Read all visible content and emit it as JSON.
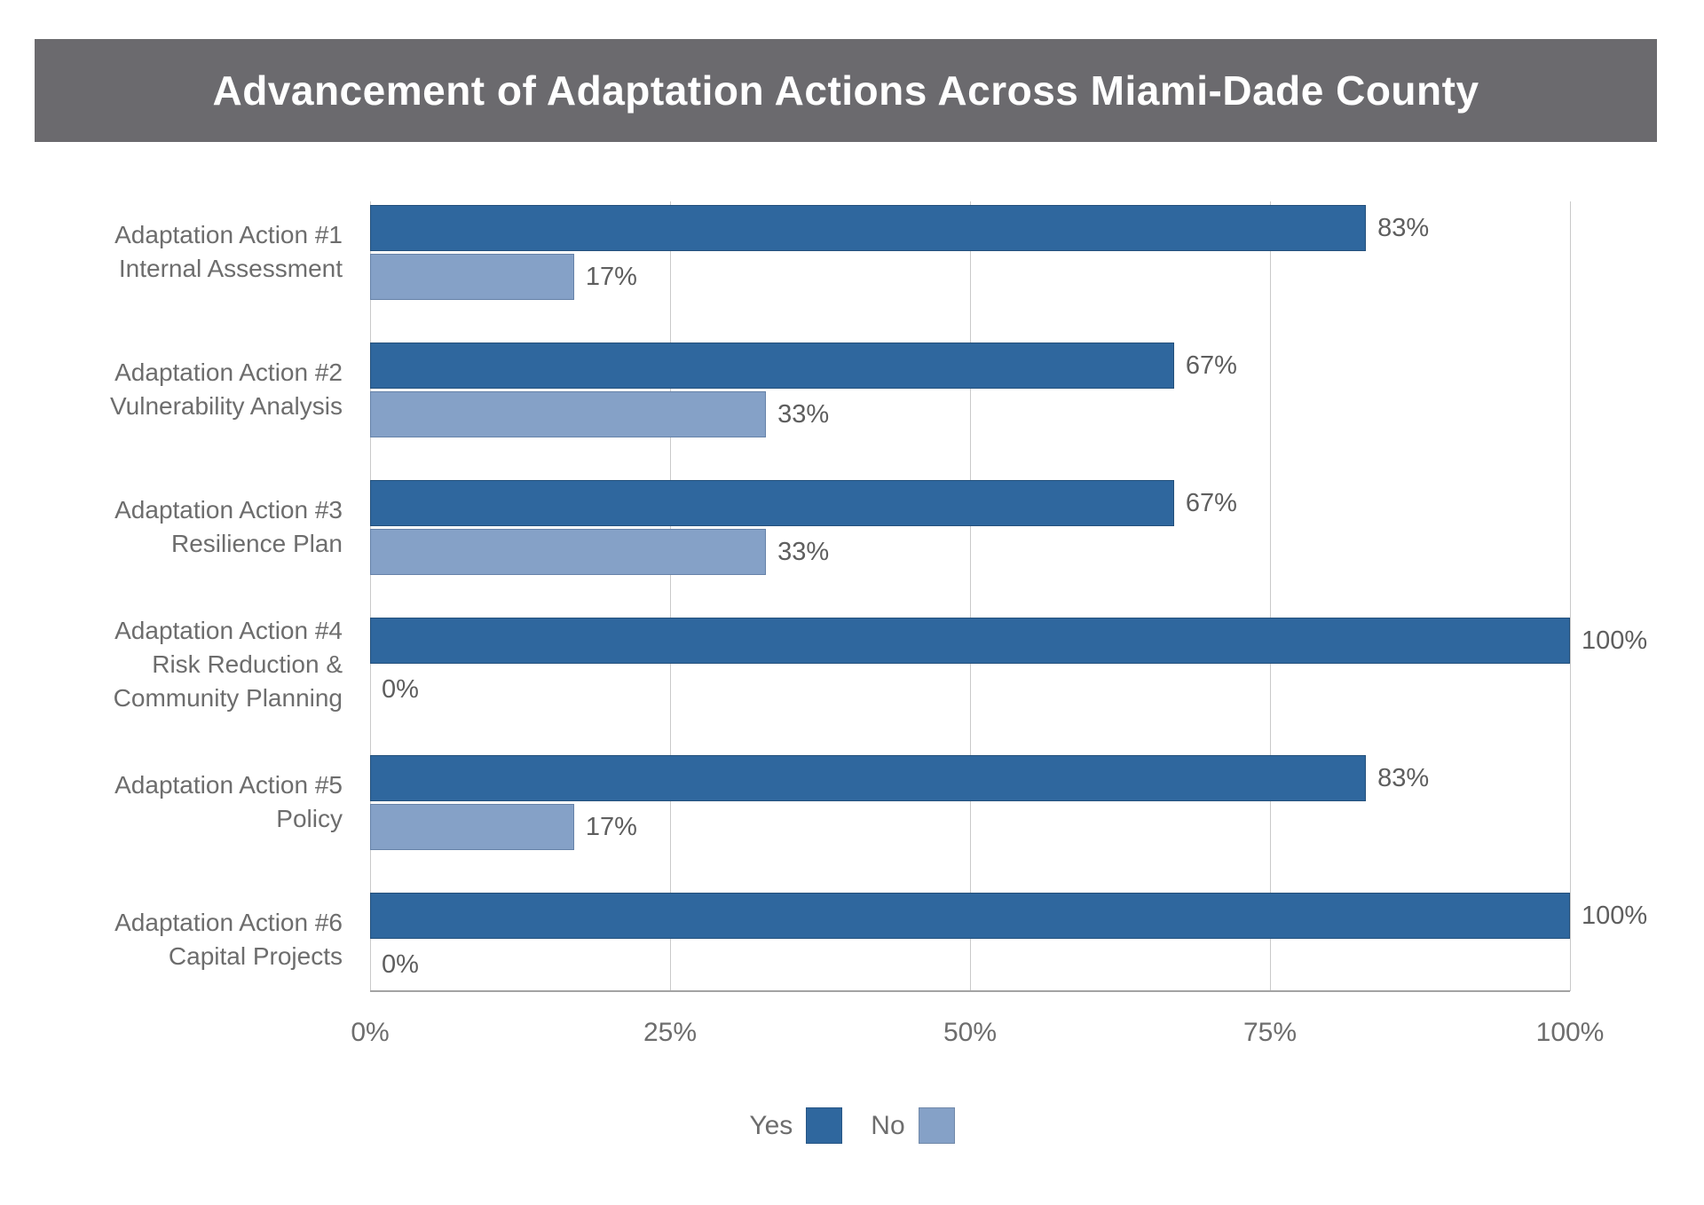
{
  "header": {
    "title": "Advancement of Adaptation Actions Across Miami-Dade County",
    "background": "#6b6a6e",
    "text_color": "#ffffff"
  },
  "chart_data": {
    "type": "bar",
    "orientation": "horizontal",
    "title": "Advancement of Adaptation Actions Across Miami-Dade County",
    "categories": [
      {
        "lines": [
          "Adaptation Action #1",
          "Internal Assessment"
        ]
      },
      {
        "lines": [
          "Adaptation Action #2",
          "Vulnerability Analysis"
        ]
      },
      {
        "lines": [
          "Adaptation Action #3",
          "Resilience Plan"
        ]
      },
      {
        "lines": [
          "Adaptation Action #4",
          "Risk Reduction &",
          "Community Planning"
        ]
      },
      {
        "lines": [
          "Adaptation Action #5",
          "Policy"
        ]
      },
      {
        "lines": [
          "Adaptation Action #6",
          "Capital Projects"
        ]
      }
    ],
    "series": [
      {
        "name": "Yes",
        "color": "#2f679e",
        "values": [
          83,
          67,
          67,
          100,
          83,
          100
        ],
        "labels": [
          "83%",
          "67%",
          "67%",
          "100%",
          "83%",
          "100%"
        ]
      },
      {
        "name": "No",
        "color": "#85a1c7",
        "values": [
          17,
          33,
          33,
          0,
          17,
          0
        ],
        "labels": [
          "17%",
          "33%",
          "33%",
          "0%",
          "17%",
          "0%"
        ]
      }
    ],
    "xlim": [
      0,
      100
    ],
    "x_ticks": [
      {
        "value": 0,
        "label": "0%"
      },
      {
        "value": 25,
        "label": "25%"
      },
      {
        "value": 50,
        "label": "50%"
      },
      {
        "value": 75,
        "label": "75%"
      },
      {
        "value": 100,
        "label": "100%"
      }
    ],
    "grid": true,
    "legend_position": "bottom",
    "value_label_color": "#5e5e5e",
    "axis_text_color": "#6d6d6d",
    "gridline_color": "#c9c9c9",
    "axis_line_color": "#a3a3a3"
  }
}
